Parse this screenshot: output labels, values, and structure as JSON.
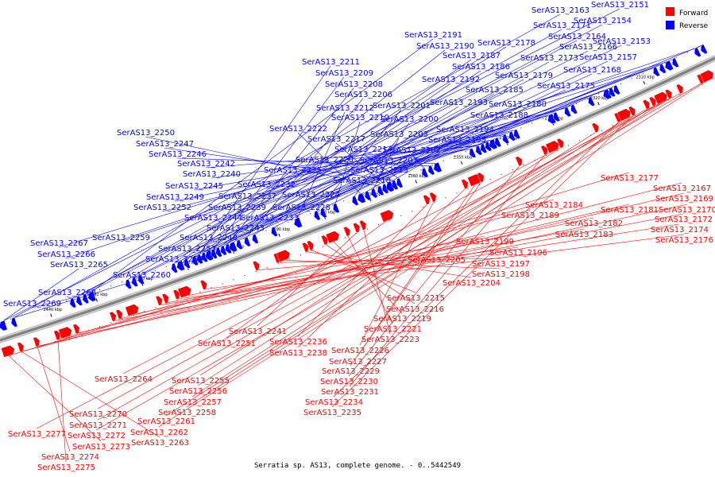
{
  "legend": {
    "forward_label": "Forward",
    "reverse_label": "Reverse",
    "forward_color": "#ff0000",
    "reverse_color": "#0000ff"
  },
  "caption": "Serratia sp. AS13, complete genome. - 0..5442549",
  "backbone_color": "#808080",
  "ticks": [
    "2310 kbp",
    "2320 kbp",
    "2330 kbp",
    "2340 kbp",
    "2350 kbp",
    "2360 kbp",
    "2370 kbp",
    "2380 kbp",
    "2390 kbp",
    "2400 kbp",
    "2410 kbp",
    "2420 kbp",
    "2430 kbp",
    "2440 kbp"
  ],
  "reverse_genes": [
    "SerAS13_2151",
    "SerAS13_2163",
    "SerAS13_2154",
    "SerAS13_2171",
    "SerAS13_2164",
    "SerAS13_2191",
    "SerAS13_2178",
    "SerAS13_2166",
    "SerAS13_2153",
    "SerAS13_2190",
    "SerAS13_2187",
    "SerAS13_2173",
    "SerAS13_2157",
    "SerAS13_2211",
    "SerAS13_2186",
    "SerAS13_2168",
    "SerAS13_2209",
    "SerAS13_2192",
    "SerAS13_2179",
    "SerAS13_2208",
    "SerAS13_2185",
    "SerAS13_2175",
    "SerAS13_2206",
    "SerAS13_2193",
    "SerAS13_2180",
    "SerAS13_2212",
    "SerAS13_2201",
    "SerAS13_2188",
    "SerAS13_2210",
    "SerAS13_2200",
    "SerAS13_2222",
    "SerAS13_2194",
    "SerAS13_2203",
    "SerAS13_2250",
    "SerAS13_2217",
    "SerAS13_2195",
    "SerAS13_2247",
    "SerAS13_2214",
    "SerAS13_2202",
    "SerAS13_2246",
    "SerAS13_2220",
    "SerAS13_2207",
    "SerAS13_2242",
    "SerAS13_2225",
    "SerAS13_2213",
    "SerAS13_2240",
    "SerAS13_2218",
    "SerAS13_2245",
    "SerAS13_2232",
    "SerAS13_2249",
    "SerAS13_2237",
    "SerAS13_2224",
    "SerAS13_2252",
    "SerAS13_2239",
    "SerAS13_2228",
    "SerAS13_2244",
    "SerAS13_2233",
    "SerAS13_2243",
    "SerAS13_2259",
    "SerAS13_2248",
    "SerAS13_2267",
    "SerAS13_2253",
    "SerAS13_2266",
    "SerAS13_2254",
    "SerAS13_2265",
    "SerAS13_2260",
    "SerAS13_2268",
    "SerAS13_2269"
  ],
  "forward_genes": [
    "SerAS13_2177",
    "SerAS13_2167",
    "SerAS13_2169",
    "SerAS13_2170",
    "SerAS13_2184",
    "SerAS13_2181",
    "SerAS13_2172",
    "SerAS13_2189",
    "SerAS13_2182",
    "SerAS13_2174",
    "SerAS13_2183",
    "SerAS13_2176",
    "SerAS13_2199",
    "SerAS13_2196",
    "SerAS13_2205",
    "SerAS13_2197",
    "SerAS13_2198",
    "SerAS13_2204",
    "SerAS13_2215",
    "SerAS13_2216",
    "SerAS13_2219",
    "SerAS13_2221",
    "SerAS13_2241",
    "SerAS13_2223",
    "SerAS13_2251",
    "SerAS13_2236",
    "SerAS13_2226",
    "SerAS13_2238",
    "SerAS13_2227",
    "SerAS13_2229",
    "SerAS13_2230",
    "SerAS13_2231",
    "SerAS13_2264",
    "SerAS13_2255",
    "SerAS13_2256",
    "SerAS13_2234",
    "SerAS13_2257",
    "SerAS13_2235",
    "SerAS13_2270",
    "SerAS13_2258",
    "SerAS13_2271",
    "SerAS13_2261",
    "SerAS13_2277",
    "SerAS13_2272",
    "SerAS13_2262",
    "SerAS13_2273",
    "SerAS13_2263",
    "SerAS13_2274",
    "SerAS13_2275"
  ]
}
